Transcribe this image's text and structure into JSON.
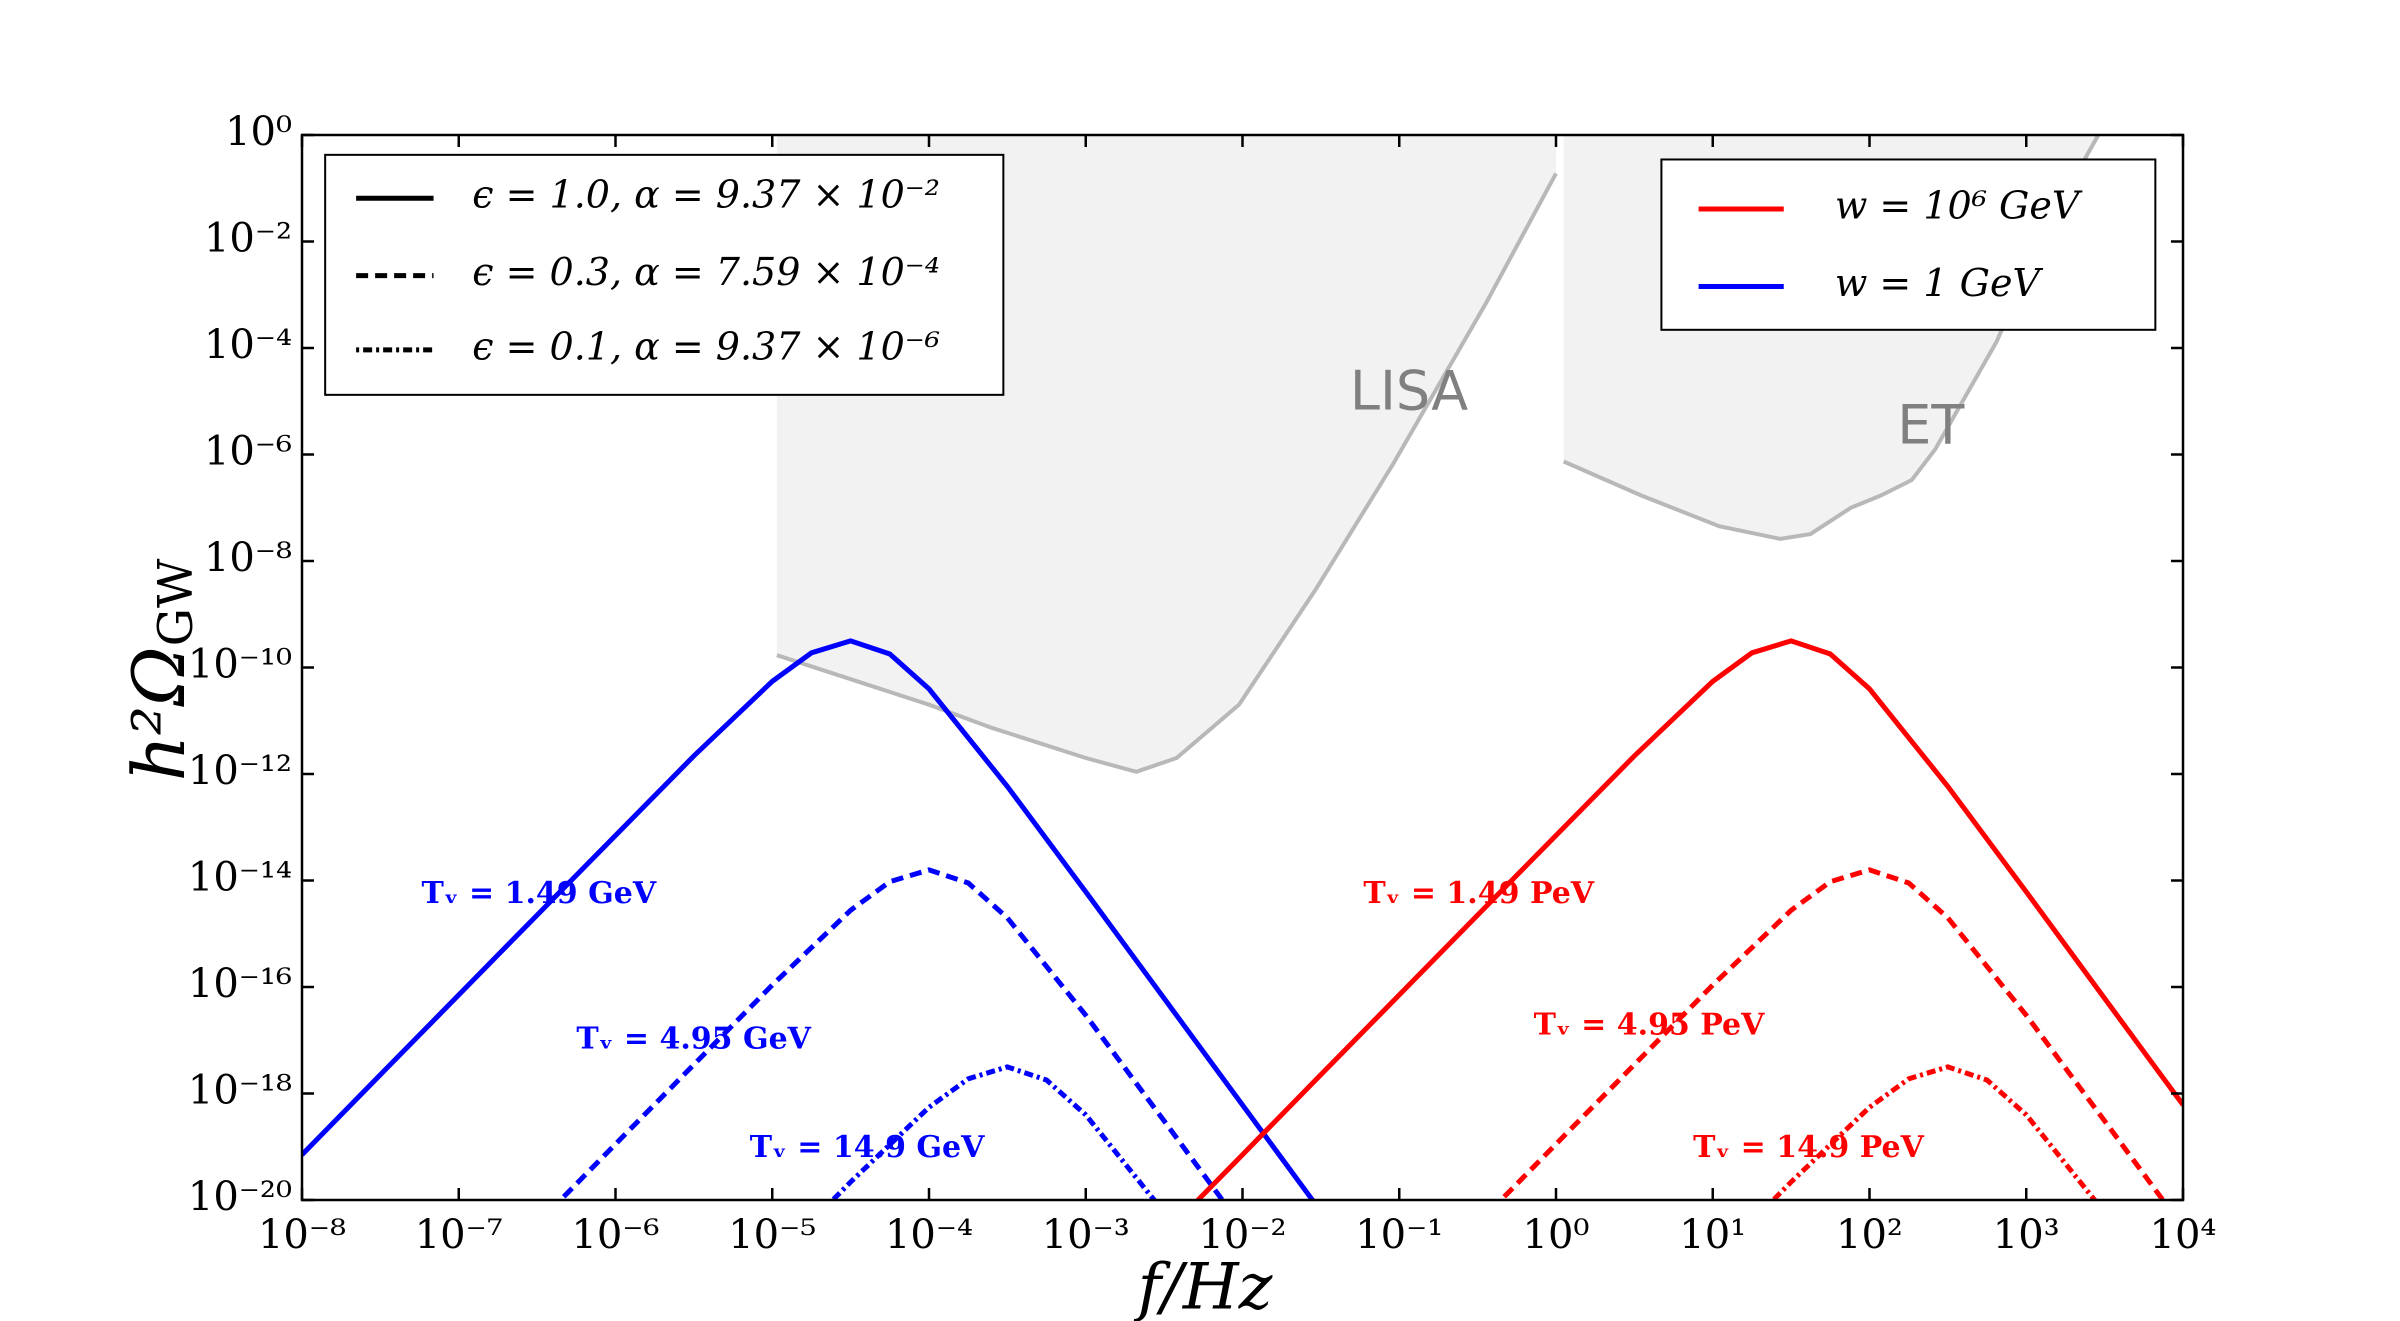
{
  "chart_data": {
    "type": "line",
    "xlabel": "f/Hz",
    "ylabel": {
      "main": "h²Ω",
      "sub": "GW"
    },
    "xscale": "log",
    "yscale": "log",
    "xlim": [
      1e-08,
      10000.0
    ],
    "ylim": [
      1e-20,
      1
    ],
    "xticks": [
      {
        "value": 1e-08,
        "label": "10⁻⁸"
      },
      {
        "value": 1e-07,
        "label": "10⁻⁷"
      },
      {
        "value": 1e-06,
        "label": "10⁻⁶"
      },
      {
        "value": 1e-05,
        "label": "10⁻⁵"
      },
      {
        "value": 0.0001,
        "label": "10⁻⁴"
      },
      {
        "value": 0.001,
        "label": "10⁻³"
      },
      {
        "value": 0.01,
        "label": "10⁻²"
      },
      {
        "value": 0.1,
        "label": "10⁻¹"
      },
      {
        "value": 1,
        "label": "10⁰"
      },
      {
        "value": 10,
        "label": "10¹"
      },
      {
        "value": 100,
        "label": "10²"
      },
      {
        "value": 1000,
        "label": "10³"
      },
      {
        "value": 10000,
        "label": "10⁴"
      }
    ],
    "yticks": [
      {
        "value": 1,
        "label": "10⁰"
      },
      {
        "value": 0.01,
        "label": "10⁻²"
      },
      {
        "value": 0.0001,
        "label": "10⁻⁴"
      },
      {
        "value": 1e-06,
        "label": "10⁻⁶"
      },
      {
        "value": 1e-08,
        "label": "10⁻⁸"
      },
      {
        "value": 1e-10,
        "label": "10⁻¹⁰"
      },
      {
        "value": 1e-12,
        "label": "10⁻¹²"
      },
      {
        "value": 1e-14,
        "label": "10⁻¹⁴"
      },
      {
        "value": 1e-16,
        "label": "10⁻¹⁶"
      },
      {
        "value": 1e-18,
        "label": "10⁻¹⁸"
      },
      {
        "value": 1e-20,
        "label": "10⁻²⁰"
      }
    ],
    "regions": [
      {
        "name": "LISA",
        "color": "#f2f2f2",
        "edge": "#b8b8b8",
        "x": [
          1.07e-05,
          0.0001,
          0.00025,
          0.001,
          0.0021,
          0.0038,
          0.0095,
          0.0295,
          0.091,
          0.36,
          1
        ],
        "values": [
          1.7e-10,
          2e-11,
          7.4e-12,
          2e-12,
          1.1e-12,
          2e-12,
          2e-11,
          3e-09,
          6.5e-07,
          0.00072,
          0.19
        ]
      },
      {
        "name": "ET",
        "color": "#f2f2f2",
        "edge": "#b8b8b8",
        "x": [
          1.12,
          3.5,
          11,
          27,
          42,
          76,
          118,
          186,
          263,
          650,
          1290,
          2880
        ],
        "values": [
          7.4e-07,
          1.7e-07,
          4.5e-08,
          2.6e-08,
          3.2e-08,
          1e-07,
          1.7e-07,
          3.3e-07,
          1.26e-06,
          0.000135,
          0.015,
          1
        ]
      }
    ],
    "series": [
      {
        "color": "#0000ff",
        "dash": "solid",
        "x": [
          1e-08,
          3.16e-08,
          3.16e-07,
          3.16e-06,
          1e-05,
          1.78e-05,
          3.16e-05,
          5.62e-05,
          0.0001,
          0.000316,
          0.001,
          0.00316,
          0.0316
        ],
        "values": [
          7.1e-20,
          2.24e-18,
          2.24e-15,
          2.18e-12,
          5.51e-11,
          1.89e-10,
          3.16e-10,
          1.79e-10,
          3.96e-11,
          5.86e-13,
          6.11e-15,
          6.11e-17,
          6.11e-21
        ]
      },
      {
        "color": "#0000ff",
        "dash": "dashed",
        "x": [
          3.16e-07,
          1e-06,
          1e-05,
          3.16e-05,
          5.62e-05,
          0.0001,
          0.000178,
          0.000316,
          0.001,
          0.00316,
          0.01
        ],
        "values": [
          3.56e-21,
          1.12e-19,
          1.09e-16,
          2.76e-15,
          9.48e-15,
          1.58e-14,
          8.97e-15,
          1.99e-15,
          2.94e-17,
          3.06e-19,
          3.06e-21
        ]
      },
      {
        "color": "#0000ff",
        "dash": "dotted",
        "x": [
          1e-05,
          3.16e-05,
          0.0001,
          0.000178,
          0.000316,
          0.000562,
          0.001,
          0.00316
        ],
        "values": [
          7.08e-22,
          2.18e-20,
          5.51e-19,
          1.89e-18,
          3.16e-18,
          1.79e-18,
          3.96e-19,
          5.86e-21
        ]
      },
      {
        "color": "#ff0000",
        "dash": "solid",
        "x": [
          0.00316,
          0.01,
          0.0316,
          0.316,
          3.16,
          10,
          17.8,
          31.6,
          56.2,
          100,
          316,
          1000,
          3162,
          10000
        ],
        "values": [
          2.24e-21,
          7.1e-20,
          2.24e-18,
          2.24e-15,
          2.18e-12,
          5.51e-11,
          1.89e-10,
          3.16e-10,
          1.79e-10,
          3.96e-11,
          5.86e-13,
          6.11e-15,
          6.11e-17,
          6.11e-19
        ]
      },
      {
        "color": "#ff0000",
        "dash": "dashed",
        "x": [
          0.316,
          1,
          10,
          31.6,
          56.2,
          100,
          178,
          316,
          1000,
          3162,
          10000
        ],
        "values": [
          3.56e-21,
          1.12e-19,
          1.09e-16,
          2.76e-15,
          9.48e-15,
          1.58e-14,
          8.97e-15,
          1.99e-15,
          2.94e-17,
          3.06e-19,
          3.06e-21
        ]
      },
      {
        "color": "#ff0000",
        "dash": "dotted",
        "x": [
          10,
          31.6,
          100,
          178,
          316,
          562,
          1000,
          3162
        ],
        "values": [
          7.08e-22,
          2.18e-20,
          5.51e-19,
          1.89e-18,
          3.16e-18,
          1.79e-18,
          3.96e-19,
          5.86e-21
        ]
      }
    ],
    "annotations": [
      {
        "text": "Tᵥ = 1.49 GeV",
        "color": "#0000ff"
      },
      {
        "text": "Tᵥ = 4.95 GeV",
        "color": "#0000ff"
      },
      {
        "text": "Tᵥ = 14.9 GeV",
        "color": "#0000ff"
      },
      {
        "text": "Tᵥ = 1.49 PeV",
        "color": "#ff0000"
      },
      {
        "text": "Tᵥ = 4.95 PeV",
        "color": "#ff0000"
      },
      {
        "text": "Tᵥ = 14.9 PeV",
        "color": "#ff0000"
      }
    ],
    "legend_style": {
      "loc": "upper left",
      "color": "#000000",
      "entries": [
        {
          "name": "ϵ = 1.0,  α =  9.37 × 10⁻²",
          "dash": "solid"
        },
        {
          "name": "ϵ = 0.3,  α =  7.59 × 10⁻⁴",
          "dash": "dashed"
        },
        {
          "name": "ϵ = 0.1,  α =  9.37 × 10⁻⁶",
          "dash": "dotted"
        }
      ]
    },
    "legend_color": {
      "loc": "upper right",
      "dash": "solid",
      "entries": [
        {
          "name": "w = 10⁶ GeV",
          "color": "#ff0000"
        },
        {
          "name": "w = 1 GeV",
          "color": "#0000ff"
        }
      ]
    }
  }
}
